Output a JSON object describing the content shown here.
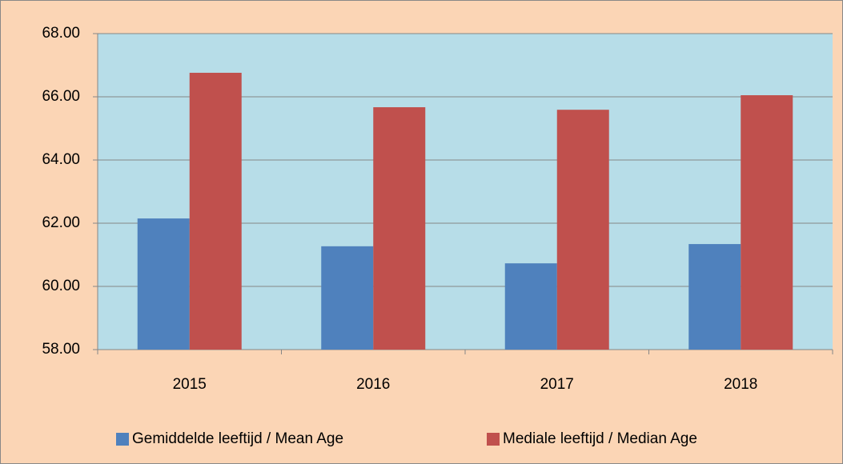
{
  "chart_data": {
    "type": "bar",
    "categories": [
      "2015",
      "2016",
      "2017",
      "2018"
    ],
    "series": [
      {
        "name": "Gemiddelde leeftijd / Mean Age",
        "color": "#4f81bd",
        "values": [
          62.15,
          61.27,
          60.73,
          61.34
        ]
      },
      {
        "name": "Mediale leeftijd / Median Age",
        "color": "#c0504d",
        "values": [
          66.76,
          65.67,
          65.59,
          66.05
        ]
      }
    ],
    "ylim": [
      58,
      68
    ],
    "yticks": [
      {
        "value": 58,
        "label": "58.00"
      },
      {
        "value": 60,
        "label": "60.00"
      },
      {
        "value": 62,
        "label": "62.00"
      },
      {
        "value": 64,
        "label": "64.00"
      },
      {
        "value": 66,
        "label": "66.00"
      },
      {
        "value": 68,
        "label": "68.00"
      }
    ],
    "grid": true,
    "legend": "bottom",
    "background": "#fbd5b5",
    "plot_background": "#b7dde8"
  }
}
